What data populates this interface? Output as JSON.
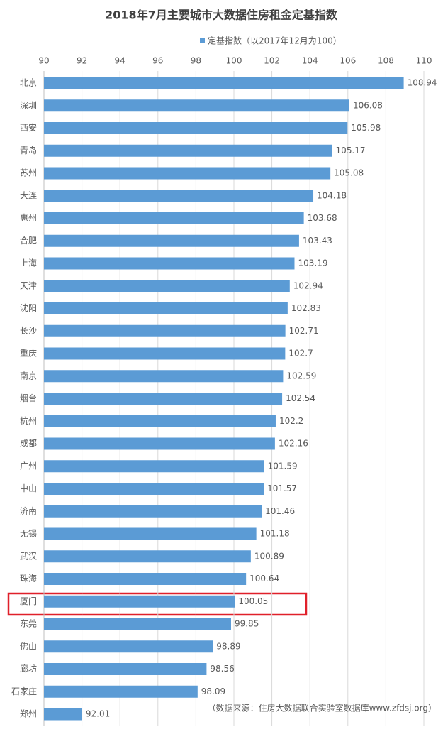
{
  "chart_data": {
    "type": "bar",
    "orientation": "horizontal",
    "title": "2018年7月主要城市大数据住房租金定基指数",
    "legend_position": "top",
    "note": "（数据来源：住房大数据联合实验室数据库www.zfdsj.org）",
    "categories": [
      "北京",
      "深圳",
      "西安",
      "青岛",
      "苏州",
      "大连",
      "惠州",
      "合肥",
      "上海",
      "天津",
      "沈阳",
      "长沙",
      "重庆",
      "南京",
      "烟台",
      "杭州",
      "成都",
      "广州",
      "中山",
      "济南",
      "无锡",
      "武汉",
      "珠海",
      "厦门",
      "东莞",
      "佛山",
      "廊坊",
      "石家庄",
      "郑州"
    ],
    "series": [
      {
        "name": "定基指数（以2017年12月为100）",
        "color": "#5b9bd5",
        "values": [
          108.94,
          106.08,
          105.98,
          105.17,
          105.08,
          104.18,
          103.68,
          103.43,
          103.19,
          102.94,
          102.83,
          102.71,
          102.7,
          102.59,
          102.54,
          102.2,
          102.16,
          101.59,
          101.57,
          101.46,
          101.18,
          100.89,
          100.64,
          100.05,
          99.85,
          98.89,
          98.56,
          98.09,
          92.01
        ]
      }
    ],
    "xlim": [
      90,
      110
    ],
    "xticks": [
      90,
      92,
      94,
      96,
      98,
      100,
      102,
      104,
      106,
      108,
      110
    ],
    "grid": true
  }
}
